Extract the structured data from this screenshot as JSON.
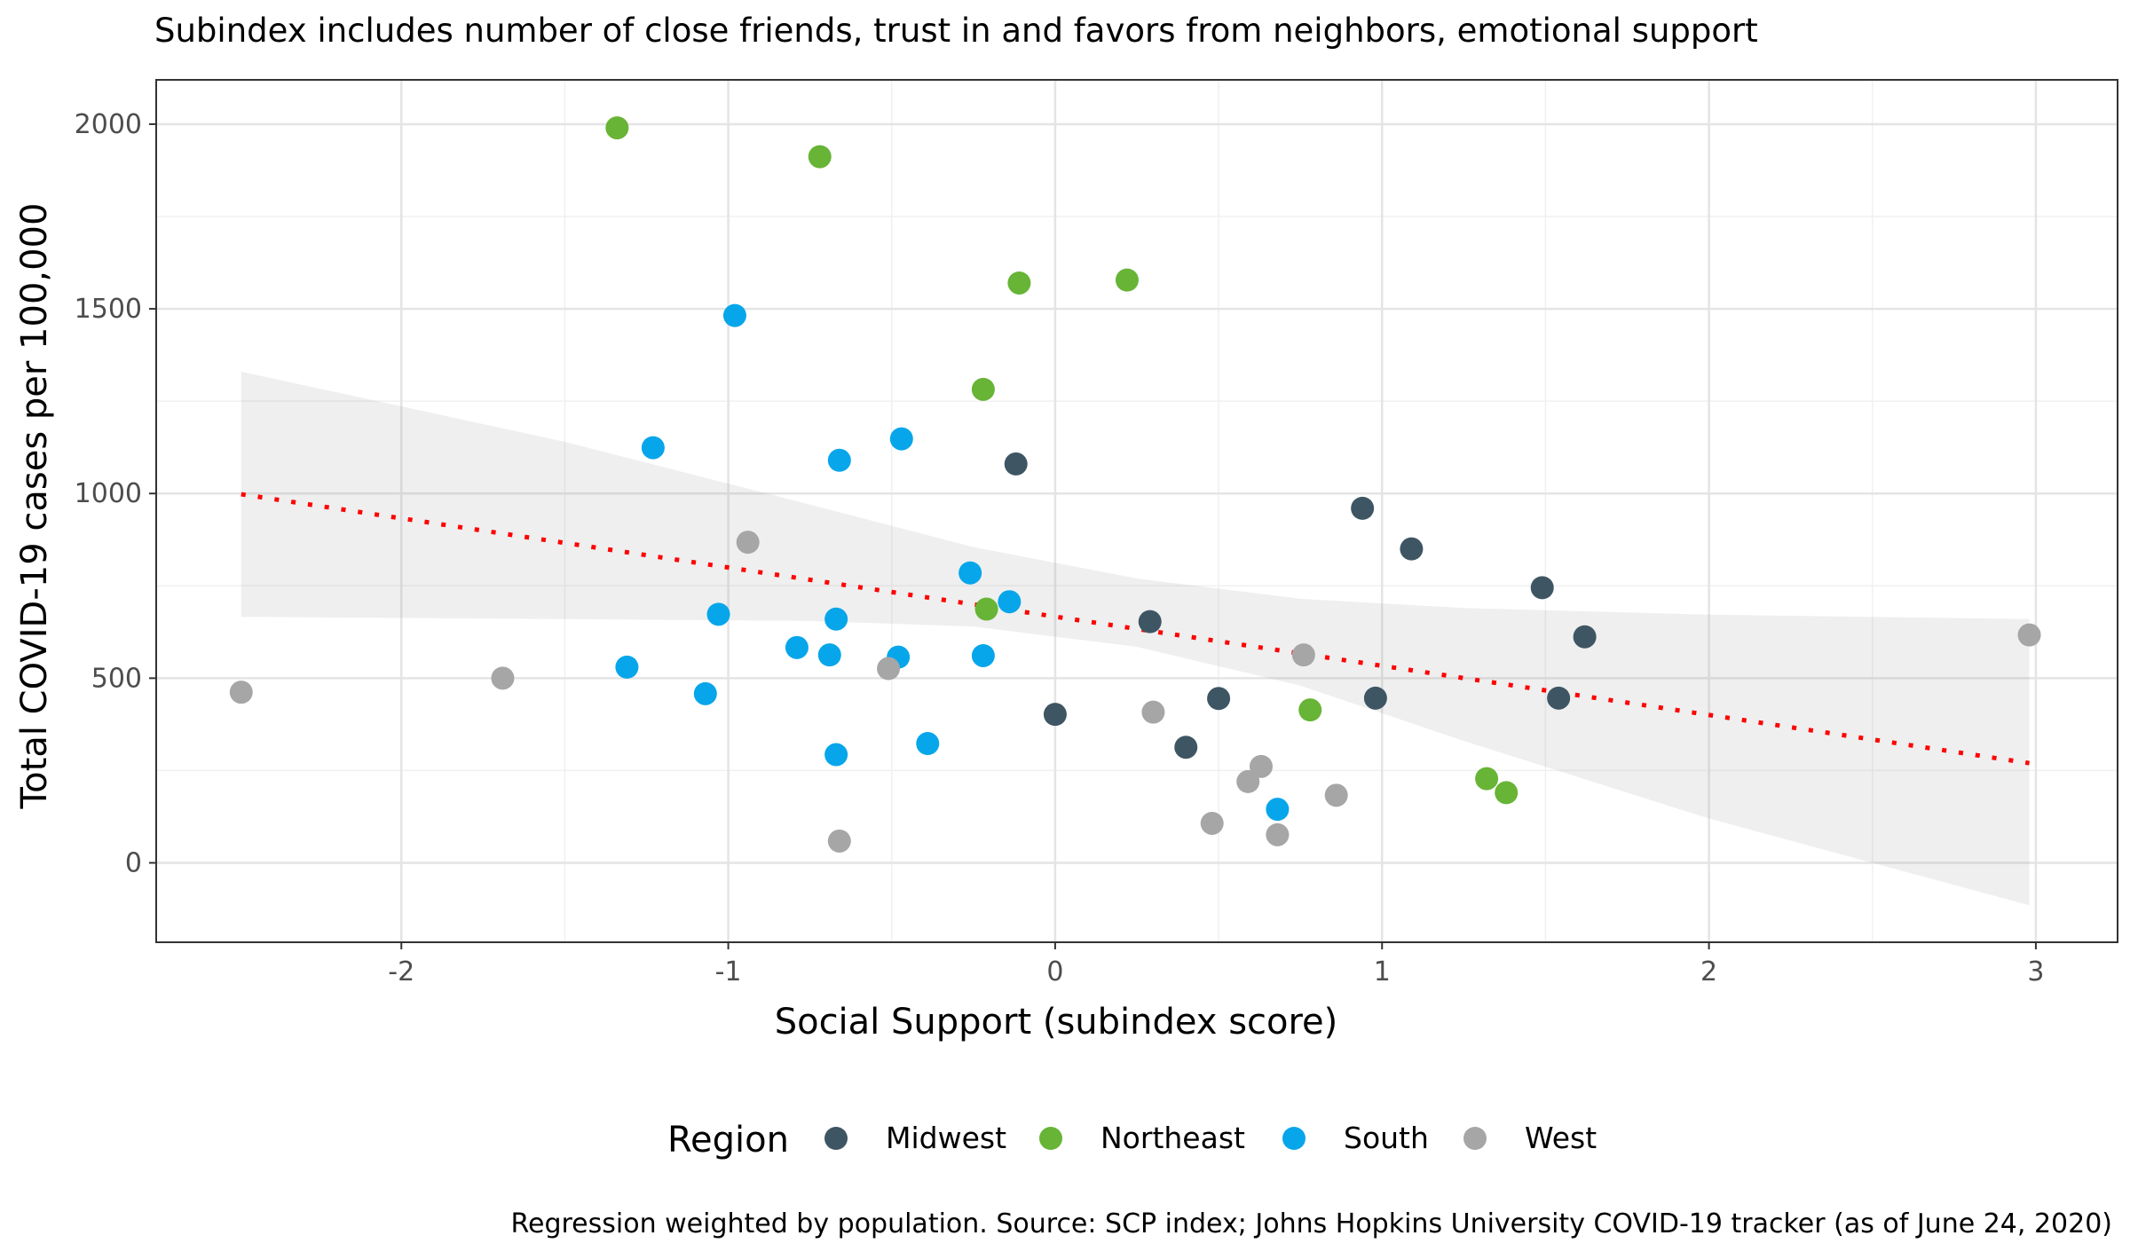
{
  "chart_data": {
    "type": "scatter",
    "subtitle": "Subindex includes number of close friends, trust in and favors from neighbors, emotional support",
    "xlabel": "Social Support (subindex score)",
    "ylabel": "Total COVID-19 cases per 100,000",
    "caption": "Regression weighted by population. Source: SCP index; Johns Hopkins University COVID-19 tracker (as of June 24, 2020)",
    "xlim": [
      -2.75,
      3.25
    ],
    "ylim": [
      -215,
      2120
    ],
    "x_ticks": [
      "-2",
      "-1",
      "0",
      "1",
      "2",
      "3"
    ],
    "x_tick_values": [
      -2,
      -1,
      0,
      1,
      2,
      3
    ],
    "y_ticks": [
      "0",
      "500",
      "1000",
      "1500",
      "2000"
    ],
    "y_tick_values": [
      0,
      500,
      1000,
      1500,
      2000
    ],
    "grid": true,
    "legend_position": "bottom",
    "legend_title": "Region",
    "series": [
      {
        "name": "Midwest",
        "color": "#3e5663",
        "points": [
          [
            -0.12,
            1080
          ],
          [
            0.94,
            960
          ],
          [
            1.09,
            850
          ],
          [
            1.49,
            745
          ],
          [
            1.62,
            612
          ],
          [
            0.29,
            653
          ],
          [
            0.5,
            445
          ],
          [
            0.98,
            446
          ],
          [
            1.54,
            446
          ],
          [
            0.0,
            402
          ],
          [
            0.4,
            313
          ]
        ]
      },
      {
        "name": "Northeast",
        "color": "#67b436",
        "points": [
          [
            -1.34,
            1990
          ],
          [
            -0.72,
            1912
          ],
          [
            -0.11,
            1570
          ],
          [
            0.22,
            1578
          ],
          [
            -0.22,
            1282
          ],
          [
            -0.21,
            687
          ],
          [
            0.78,
            414
          ],
          [
            1.32,
            228
          ],
          [
            1.38,
            190
          ]
        ]
      },
      {
        "name": "South",
        "color": "#07a6ea",
        "points": [
          [
            -0.98,
            1482
          ],
          [
            -1.23,
            1124
          ],
          [
            -0.66,
            1090
          ],
          [
            -0.47,
            1148
          ],
          [
            -0.26,
            785
          ],
          [
            -0.14,
            707
          ],
          [
            -1.03,
            673
          ],
          [
            -0.67,
            660
          ],
          [
            -0.79,
            583
          ],
          [
            -0.69,
            563
          ],
          [
            -0.48,
            557
          ],
          [
            -0.22,
            561
          ],
          [
            -1.31,
            530
          ],
          [
            -1.07,
            458
          ],
          [
            -0.39,
            323
          ],
          [
            -0.67,
            293
          ],
          [
            0.68,
            145
          ]
        ]
      },
      {
        "name": "West",
        "color": "#a6a6a6",
        "points": [
          [
            -0.94,
            868
          ],
          [
            -2.49,
            462
          ],
          [
            -1.69,
            500
          ],
          [
            -0.51,
            526
          ],
          [
            0.76,
            563
          ],
          [
            2.98,
            617
          ],
          [
            0.3,
            408
          ],
          [
            0.63,
            261
          ],
          [
            0.59,
            220
          ],
          [
            0.86,
            183
          ],
          [
            0.48,
            107
          ],
          [
            0.68,
            76
          ],
          [
            -0.66,
            59
          ]
        ]
      }
    ],
    "regression": {
      "color": "#ff0000",
      "line": [
        [
          -2.49,
          998
        ],
        [
          2.98,
          270
        ]
      ],
      "ci_upper": [
        [
          -2.49,
          1330
        ],
        [
          -1.5,
          1140
        ],
        [
          -0.75,
          970
        ],
        [
          -0.25,
          855
        ],
        [
          0.25,
          770
        ],
        [
          0.75,
          715
        ],
        [
          1.25,
          690
        ],
        [
          2.0,
          672
        ],
        [
          2.98,
          660
        ]
      ],
      "ci_lower": [
        [
          -2.49,
          666
        ],
        [
          -1.5,
          660
        ],
        [
          -0.75,
          655
        ],
        [
          -0.25,
          640
        ],
        [
          0.25,
          585
        ],
        [
          0.75,
          480
        ],
        [
          1.25,
          330
        ],
        [
          2.0,
          120
        ],
        [
          2.98,
          -115
        ]
      ]
    }
  }
}
